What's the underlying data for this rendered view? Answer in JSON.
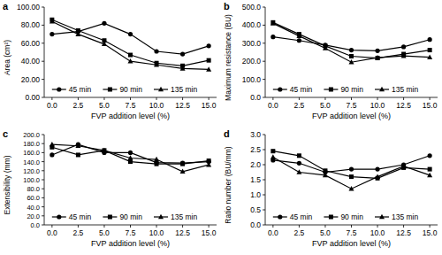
{
  "chart_data": [
    {
      "type": "line",
      "title": "a",
      "x_label": "FVP addition level (%)",
      "y_label": "Area (cm²)",
      "x": [
        0,
        2.5,
        5,
        7.5,
        10,
        12.5,
        15
      ],
      "xlim": [
        -0.75,
        15.75
      ],
      "xticks": [
        {
          "value": 0,
          "label": "0.0"
        },
        2.5,
        {
          "value": 5,
          "label": "5.0"
        },
        7.5,
        {
          "value": 10,
          "label": "10.0"
        },
        12.5,
        {
          "value": 15,
          "label": "15.0"
        }
      ],
      "ylim": [
        0,
        100
      ],
      "yticks": [
        {
          "value": 0,
          "label": "0.00"
        },
        {
          "value": 20,
          "label": "20.00"
        },
        {
          "value": 40,
          "label": "40.00"
        },
        {
          "value": 60,
          "label": "60.00"
        },
        {
          "value": 80,
          "label": "80.00"
        },
        {
          "value": 100,
          "label": "100.00"
        }
      ],
      "grid": false,
      "legend": "bottom",
      "series": [
        {
          "name": "45 min",
          "color": "#000000",
          "marker": "circle",
          "values": [
            70,
            73,
            82,
            70,
            51,
            48,
            57
          ]
        },
        {
          "name": "90 min",
          "color": "#000000",
          "marker": "square",
          "values": [
            86,
            74,
            63,
            47,
            38,
            35,
            41
          ]
        },
        {
          "name": "135 min",
          "color": "#000000",
          "marker": "triangle",
          "values": [
            84,
            70,
            59,
            40,
            36,
            32,
            31
          ]
        }
      ]
    },
    {
      "type": "line",
      "title": "b",
      "x_label": "FVP addition level (%)",
      "y_label": "Maximum resistance (BU)",
      "x": [
        0,
        2.5,
        5,
        7.5,
        10,
        12.5,
        15
      ],
      "xlim": [
        -0.75,
        15.75
      ],
      "xticks": [
        {
          "value": 0,
          "label": "0.0"
        },
        2.5,
        {
          "value": 5,
          "label": "5.0"
        },
        7.5,
        {
          "value": 10,
          "label": "10.0"
        },
        12.5,
        {
          "value": 15,
          "label": "15.0"
        }
      ],
      "ylim": [
        0,
        500
      ],
      "yticks": [
        {
          "value": 0,
          "label": "0.0"
        },
        {
          "value": 100,
          "label": "100.0"
        },
        {
          "value": 200,
          "label": "200.0"
        },
        {
          "value": 300,
          "label": "300.0"
        },
        {
          "value": 400,
          "label": "400.0"
        },
        {
          "value": 500,
          "label": "500.0"
        }
      ],
      "grid": false,
      "legend": "bottom",
      "series": [
        {
          "name": "45 min",
          "color": "#000000",
          "marker": "circle",
          "values": [
            335,
            315,
            290,
            262,
            258,
            280,
            320
          ]
        },
        {
          "name": "90 min",
          "color": "#000000",
          "marker": "square",
          "values": [
            415,
            350,
            285,
            228,
            218,
            240,
            262
          ]
        },
        {
          "name": "135 min",
          "color": "#000000",
          "marker": "triangle",
          "values": [
            410,
            340,
            272,
            195,
            220,
            230,
            222
          ]
        }
      ]
    },
    {
      "type": "line",
      "title": "c",
      "x_label": "FVP addition level (%)",
      "y_label": "Extensibility (mm)",
      "x": [
        0,
        2.5,
        5,
        7.5,
        10,
        12.5,
        15
      ],
      "xlim": [
        -0.75,
        15.75
      ],
      "xticks": [
        {
          "value": 0,
          "label": "0.0"
        },
        2.5,
        {
          "value": 5,
          "label": "5.0"
        },
        7.5,
        {
          "value": 10,
          "label": "10.0"
        },
        12.5,
        {
          "value": 15,
          "label": "15.0"
        }
      ],
      "ylim": [
        0,
        200
      ],
      "yticks": [
        {
          "value": 0,
          "label": "0.0"
        },
        {
          "value": 20,
          "label": "20.0"
        },
        {
          "value": 40,
          "label": "40.0"
        },
        {
          "value": 60,
          "label": "60.0"
        },
        {
          "value": 80,
          "label": "80.0"
        },
        {
          "value": 100,
          "label": "100.0"
        },
        {
          "value": 120,
          "label": "120.0"
        },
        {
          "value": 140,
          "label": "140.0"
        },
        {
          "value": 160,
          "label": "160.0"
        },
        {
          "value": 180,
          "label": "180.0"
        },
        {
          "value": 200,
          "label": "200.0"
        }
      ],
      "grid": false,
      "legend": "bottom",
      "series": [
        {
          "name": "45 min",
          "color": "#000000",
          "marker": "circle",
          "values": [
            155,
            178,
            160,
            160,
            138,
            137,
            140
          ]
        },
        {
          "name": "90 min",
          "color": "#000000",
          "marker": "square",
          "values": [
            172,
            155,
            165,
            140,
            135,
            135,
            142
          ]
        },
        {
          "name": "135 min",
          "color": "#000000",
          "marker": "triangle",
          "values": [
            178,
            175,
            165,
            148,
            145,
            118,
            133
          ]
        }
      ]
    },
    {
      "type": "line",
      "title": "d",
      "x_label": "FVP addition level (%)",
      "y_label": "Ratio number (BU/mm)",
      "x": [
        0,
        2.5,
        5,
        7.5,
        10,
        12.5,
        15
      ],
      "xlim": [
        -0.75,
        15.75
      ],
      "xticks": [
        {
          "value": 0,
          "label": "0.0"
        },
        2.5,
        {
          "value": 5,
          "label": "5.0"
        },
        7.5,
        {
          "value": 10,
          "label": "10.0"
        },
        12.5,
        {
          "value": 15,
          "label": "15.0"
        }
      ],
      "ylim": [
        0,
        3
      ],
      "yticks": [
        {
          "value": 0,
          "label": "0.0"
        },
        0.5,
        {
          "value": 1,
          "label": "1.0"
        },
        1.5,
        {
          "value": 2,
          "label": "2.0"
        },
        2.5,
        {
          "value": 3,
          "label": "3.0"
        }
      ],
      "grid": false,
      "legend": "bottom",
      "series": [
        {
          "name": "45 min",
          "color": "#000000",
          "marker": "circle",
          "values": [
            2.15,
            2.05,
            1.75,
            1.85,
            1.85,
            2.0,
            2.3
          ]
        },
        {
          "name": "90 min",
          "color": "#000000",
          "marker": "square",
          "values": [
            2.45,
            2.3,
            1.8,
            1.6,
            1.55,
            1.9,
            1.85
          ]
        },
        {
          "name": "135 min",
          "color": "#000000",
          "marker": "triangle",
          "values": [
            2.25,
            1.75,
            1.65,
            1.2,
            1.6,
            1.95,
            1.65
          ]
        }
      ]
    }
  ]
}
